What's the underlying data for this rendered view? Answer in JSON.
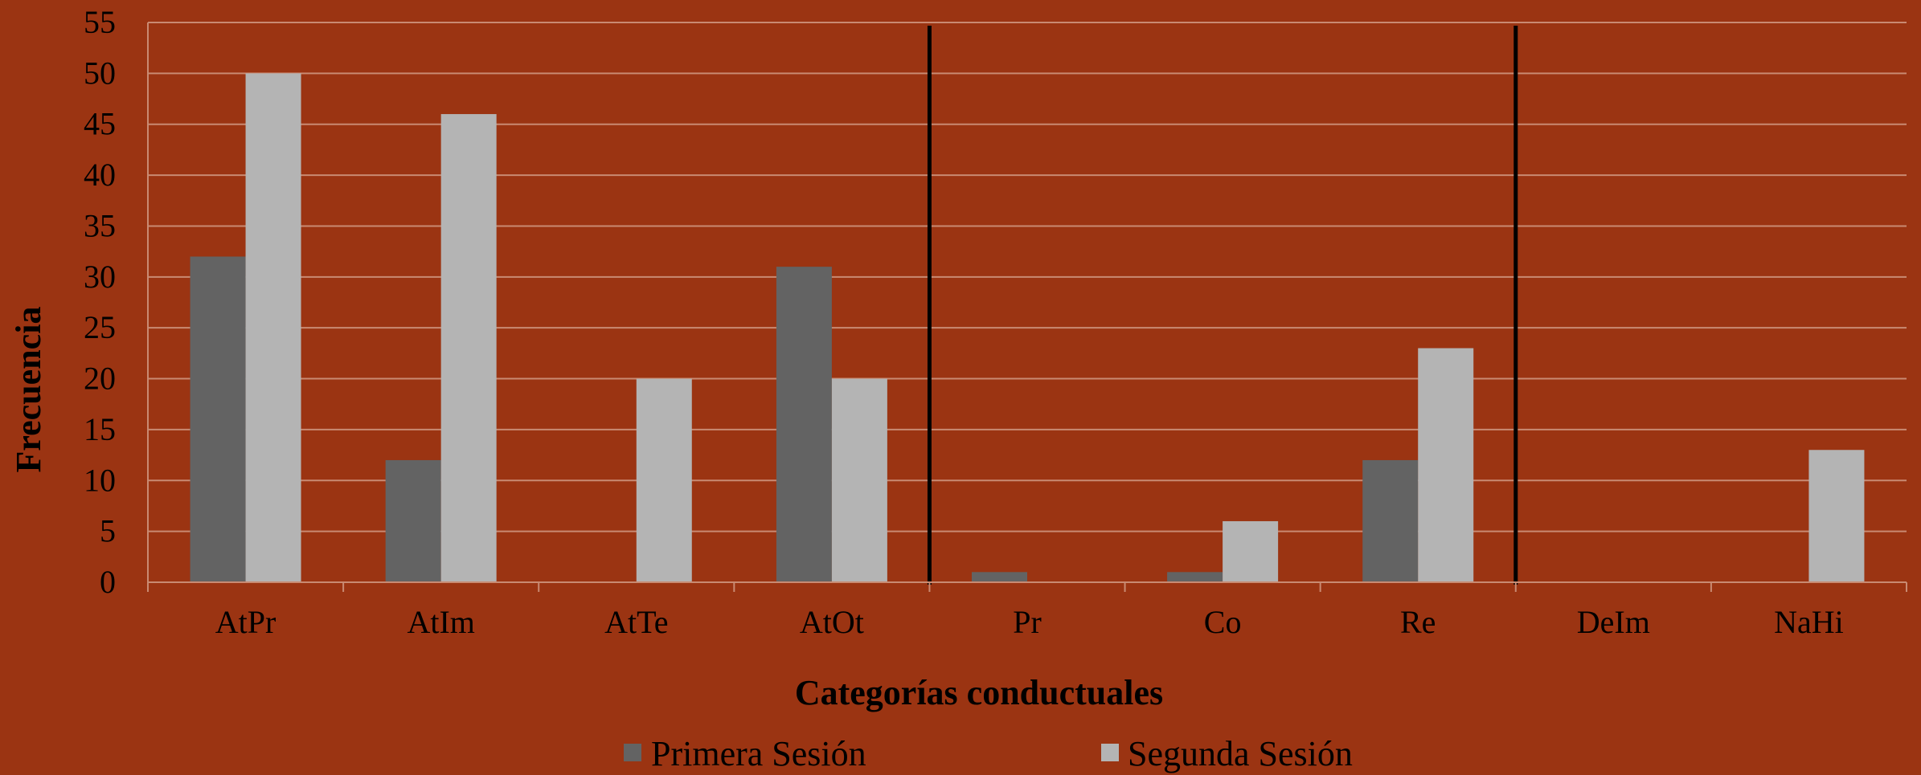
{
  "chart_data": {
    "type": "bar",
    "title": "",
    "xlabel": "Categorías conductuales",
    "ylabel": "Frecuencia",
    "ylim": [
      0,
      55
    ],
    "yticks": [
      0,
      5,
      10,
      15,
      20,
      25,
      30,
      35,
      40,
      45,
      50,
      55
    ],
    "categories": [
      "AtPr",
      "AtIm",
      "AtTe",
      "AtOt",
      "Pr",
      "Co",
      "Re",
      "DeIm",
      "NaHi"
    ],
    "series": [
      {
        "name": "Primera Sesión",
        "color": "#636363",
        "values": [
          32,
          12,
          0,
          31,
          1,
          1,
          12,
          0,
          0
        ]
      },
      {
        "name": "Segunda Sesión",
        "color": "#B4B4B4",
        "values": [
          50,
          46,
          20,
          20,
          0,
          6,
          23,
          0,
          13
        ]
      }
    ],
    "group_separators_after": [
      "AtOt",
      "Re"
    ],
    "grid": true,
    "legend": "bottom",
    "background_color": "#9B3412",
    "gridline_color": "#C98A72"
  }
}
